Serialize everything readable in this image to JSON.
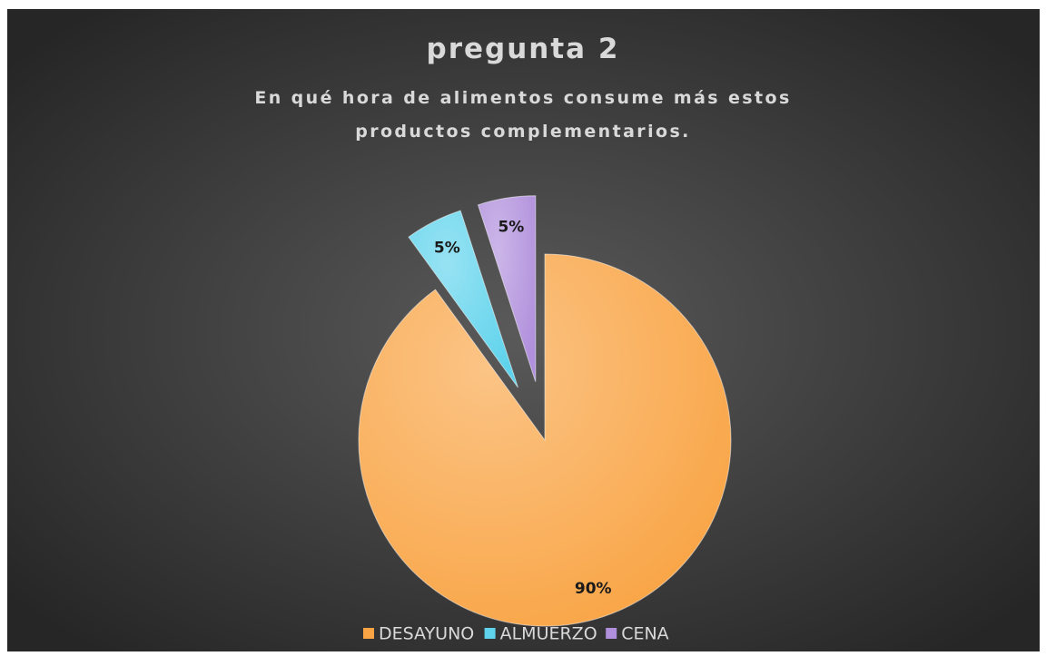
{
  "chart_data": {
    "type": "pie",
    "title": "pregunta 2",
    "subtitle": "En qué hora de alimentos consume más estos productos complementarios.",
    "categories": [
      "DESAYUNO",
      "ALMUERZO",
      "CENA"
    ],
    "values": [
      90,
      5,
      5
    ],
    "value_labels": [
      "90%",
      "5%",
      "5%"
    ],
    "colors": [
      "#f9a444",
      "#5fd3ec",
      "#b08fdc"
    ],
    "exploded": [
      false,
      true,
      true
    ],
    "legend": "bottom"
  }
}
